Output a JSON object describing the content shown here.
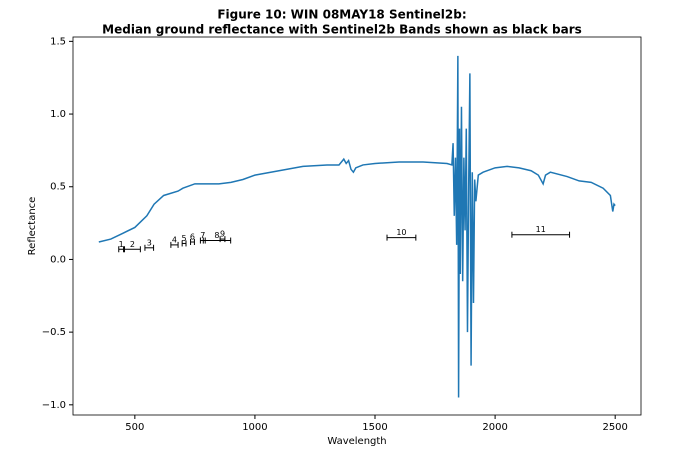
{
  "chart_data": {
    "type": "line",
    "title": [
      "Figure 10: WIN 08MAY18  Sentinel2b:",
      "Median ground reflectance with Sentinel2b Bands shown as black bars"
    ],
    "xlabel": "Wavelength",
    "ylabel": "Reflectance",
    "x": [
      350,
      400,
      450,
      500,
      550,
      580,
      620,
      680,
      700,
      750,
      800,
      850,
      900,
      950,
      1000,
      1100,
      1200,
      1300,
      1350,
      1370,
      1380,
      1390,
      1400,
      1410,
      1420,
      1450,
      1500,
      1600,
      1700,
      1800,
      1820,
      1825,
      1830,
      1835,
      1840,
      1845,
      1848,
      1852,
      1855,
      1860,
      1865,
      1870,
      1875,
      1880,
      1885,
      1890,
      1895,
      1900,
      1905,
      1910,
      1915,
      1920,
      1930,
      1950,
      2000,
      2050,
      2100,
      2150,
      2180,
      2200,
      2210,
      2230,
      2300,
      2350,
      2400,
      2450,
      2480,
      2490,
      2495,
      2500
    ],
    "values": [
      0.12,
      0.14,
      0.18,
      0.22,
      0.3,
      0.38,
      0.44,
      0.47,
      0.49,
      0.52,
      0.52,
      0.52,
      0.53,
      0.55,
      0.58,
      0.61,
      0.64,
      0.65,
      0.65,
      0.69,
      0.66,
      0.68,
      0.62,
      0.6,
      0.63,
      0.65,
      0.66,
      0.67,
      0.67,
      0.66,
      0.65,
      0.8,
      0.3,
      0.7,
      0.1,
      1.4,
      -0.95,
      0.9,
      -0.1,
      1.05,
      -0.15,
      0.7,
      0.2,
      0.9,
      -0.5,
      0.5,
      1.28,
      -0.73,
      0.6,
      -0.3,
      0.55,
      0.4,
      0.58,
      0.6,
      0.63,
      0.64,
      0.63,
      0.61,
      0.58,
      0.52,
      0.58,
      0.6,
      0.57,
      0.54,
      0.53,
      0.49,
      0.44,
      0.33,
      0.38,
      0.37
    ],
    "color": "#1f77b4",
    "bands": [
      {
        "label": "1",
        "center": 443,
        "halfwidth": 10,
        "y": 0.07
      },
      {
        "label": "2",
        "center": 490,
        "halfwidth": 33,
        "y": 0.07
      },
      {
        "label": "3",
        "center": 560,
        "halfwidth": 18,
        "y": 0.08
      },
      {
        "label": "4",
        "center": 665,
        "halfwidth": 15,
        "y": 0.1
      },
      {
        "label": "5",
        "center": 705,
        "halfwidth": 8,
        "y": 0.11
      },
      {
        "label": "6",
        "center": 740,
        "halfwidth": 8,
        "y": 0.12
      },
      {
        "label": "7",
        "center": 783,
        "halfwidth": 10,
        "y": 0.13
      },
      {
        "label": "8",
        "center": 842,
        "halfwidth": 57,
        "y": 0.13
      },
      {
        "label": "9",
        "center": 865,
        "halfwidth": 10,
        "y": 0.14
      },
      {
        "label": "10",
        "center": 1610,
        "halfwidth": 60,
        "y": 0.15
      },
      {
        "label": "11",
        "center": 2190,
        "halfwidth": 120,
        "y": 0.17
      }
    ],
    "band_color": "#000000",
    "xlim": [
      242.5,
      2607.5
    ],
    "ylim": [
      -1.07,
      1.53
    ],
    "xticks": [
      500,
      1000,
      1500,
      2000,
      2500
    ],
    "yticks": [
      {
        "value": -1,
        "label": "−1.0"
      },
      {
        "value": -0.5,
        "label": "−0.5"
      },
      {
        "value": 0,
        "label": "0.0"
      },
      {
        "value": 0.5,
        "label": "0.5"
      },
      {
        "value": 1,
        "label": "1.0"
      },
      {
        "value": 1.5,
        "label": "1.5"
      }
    ]
  }
}
